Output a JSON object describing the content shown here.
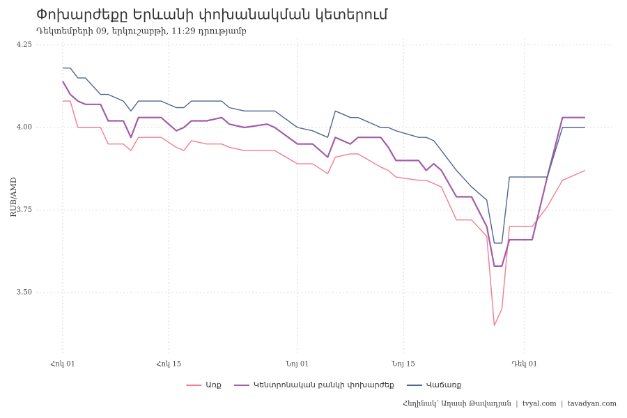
{
  "chart_data": {
    "type": "line",
    "title": "Փոխարժեքը Երևանի փոխանակման կետերում",
    "subtitle": "Դեկտեմբերի 09, երկուշաբթի, 11:29 դրությամբ",
    "y_label": "RUB/AMD",
    "caption": [
      "Հեղինակ՝ Աղասի Թավադյան",
      "tvyal.com",
      "tavadyan.com"
    ],
    "x": [
      0,
      1,
      2,
      3,
      5,
      6,
      8,
      9,
      10,
      13,
      15,
      16,
      17,
      19,
      21,
      22,
      24,
      27,
      28,
      31,
      33,
      35,
      36,
      38,
      39,
      42,
      43,
      44,
      47,
      48,
      49,
      50,
      52,
      54,
      56,
      57,
      58,
      59,
      62,
      64,
      66,
      69
    ],
    "xlim": [
      -3.5,
      72.5
    ],
    "xticks": [
      {
        "value": 0,
        "label": "Հոկ 01"
      },
      {
        "value": 14,
        "label": "Հոկ 15"
      },
      {
        "value": 31,
        "label": "Նոյ 01"
      },
      {
        "value": 45,
        "label": "Նոյ 15"
      },
      {
        "value": 61,
        "label": "Դեկ 01"
      }
    ],
    "ylim": [
      3.31,
      4.27
    ],
    "yticks": [
      {
        "value": 3.5,
        "label": "3.50"
      },
      3.75,
      {
        "value": 4,
        "label": "4.00"
      },
      4.25
    ],
    "grid": true,
    "legend": "bottom",
    "series": [
      {
        "name": "Առք",
        "color": "#f27d8c",
        "values": [
          4.08,
          4.08,
          4.0,
          4.0,
          4.0,
          3.95,
          3.95,
          3.93,
          3.97,
          3.97,
          3.94,
          3.93,
          3.96,
          3.95,
          3.95,
          3.94,
          3.93,
          3.93,
          3.93,
          3.89,
          3.89,
          3.86,
          3.91,
          3.92,
          3.92,
          3.88,
          3.87,
          3.85,
          3.84,
          3.84,
          3.83,
          3.82,
          3.72,
          3.72,
          3.67,
          3.4,
          3.45,
          3.7,
          3.7,
          3.76,
          3.84,
          3.87
        ]
      },
      {
        "name": "Կենտրոնական բանկի փոխարժեք",
        "color": "#a35ca8",
        "values": [
          4.14,
          4.1,
          4.08,
          4.07,
          4.07,
          4.02,
          4.02,
          3.97,
          4.03,
          4.03,
          3.99,
          4.0,
          4.02,
          4.02,
          4.03,
          4.01,
          4.0,
          4.01,
          4.0,
          3.95,
          3.95,
          3.91,
          3.97,
          3.95,
          3.97,
          3.97,
          3.94,
          3.9,
          3.9,
          3.87,
          3.89,
          3.87,
          3.79,
          3.79,
          3.7,
          3.58,
          3.58,
          3.66,
          3.66,
          3.85,
          4.03,
          4.03
        ]
      },
      {
        "name": "Վաճառք",
        "color": "#4f6690",
        "values": [
          4.18,
          4.18,
          4.15,
          4.15,
          4.1,
          4.1,
          4.08,
          4.05,
          4.08,
          4.08,
          4.06,
          4.06,
          4.08,
          4.08,
          4.08,
          4.06,
          4.05,
          4.05,
          4.05,
          4.0,
          3.99,
          3.97,
          4.05,
          4.03,
          4.03,
          4.0,
          4.0,
          3.99,
          3.97,
          3.97,
          3.96,
          3.93,
          3.87,
          3.82,
          3.78,
          3.65,
          3.65,
          3.85,
          3.85,
          3.85,
          4.0,
          4.0
        ]
      }
    ]
  }
}
